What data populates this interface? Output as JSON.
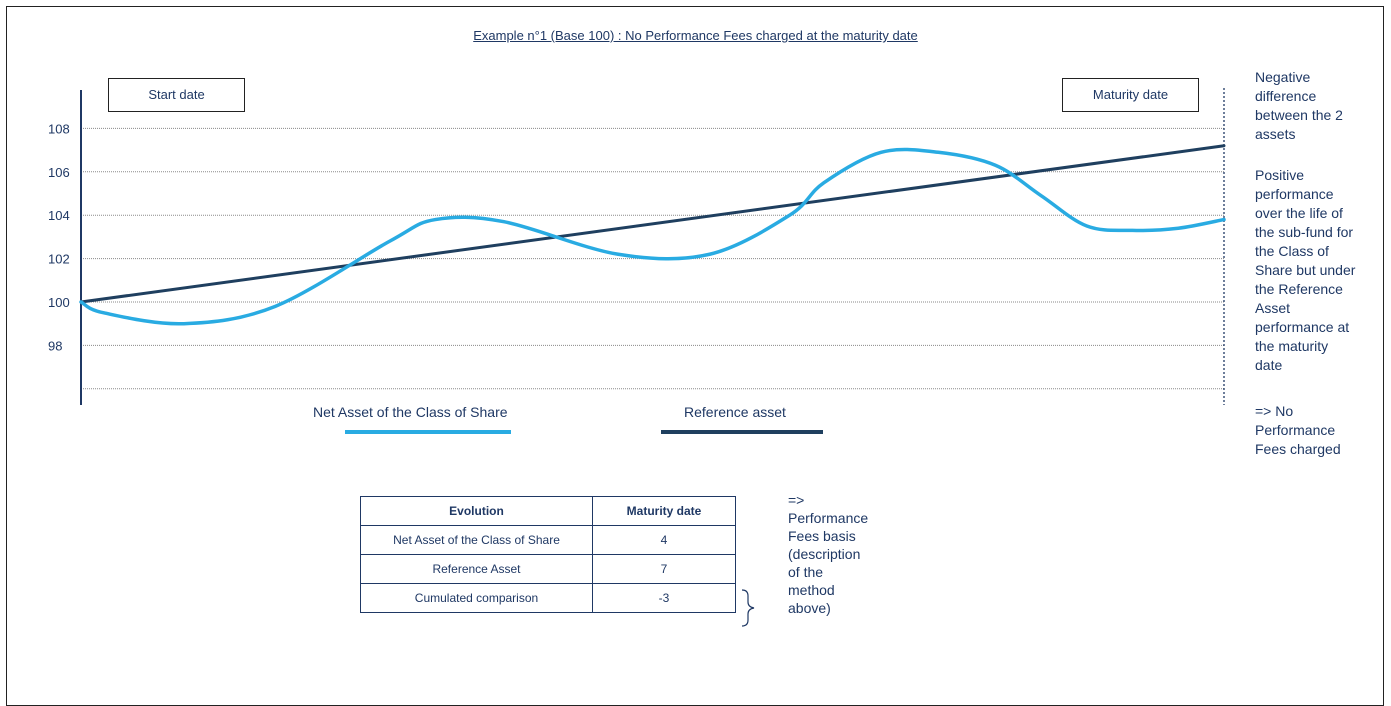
{
  "colors": {
    "net_asset": "#29abe2",
    "reference": "#1f3f5f",
    "text": "#1f3864"
  },
  "chart_data": {
    "type": "line",
    "title": "Example n°1 (Base 100) : No Performance Fees charged at the maturity date",
    "ylim": [
      96,
      109.5
    ],
    "xlim": [
      0,
      100
    ],
    "yticks": [
      108,
      106,
      104,
      102,
      100,
      98
    ],
    "grid": true,
    "legend_placement": "bottom",
    "series": [
      {
        "name": "Net Asset of the Class of Share",
        "color": "#29abe2",
        "x": [
          0,
          2,
          9,
          17,
          27,
          31,
          37,
          47,
          55,
          62,
          65,
          70,
          75,
          80,
          84,
          88,
          92,
          96,
          100
        ],
        "y": [
          100,
          99.5,
          99.0,
          99.8,
          102.8,
          103.8,
          103.7,
          102.2,
          102.2,
          104.0,
          105.5,
          106.9,
          106.9,
          106.3,
          104.9,
          103.5,
          103.3,
          103.4,
          103.8
        ]
      },
      {
        "name": "Reference asset",
        "color": "#1f3f5f",
        "x": [
          0,
          100
        ],
        "y": [
          100,
          107.2
        ]
      }
    ]
  },
  "labels": {
    "start_date": "Start date",
    "maturity_date": "Maturity date"
  },
  "side_note": {
    "negative_difference": [
      "Negative",
      "difference",
      "between the 2",
      "assets"
    ],
    "positive_performance": [
      "Positive",
      "performance",
      "over the life of",
      "the sub-fund for",
      "the Class of",
      "Share but under",
      "the Reference",
      "Asset",
      "performance at",
      "the maturity",
      "date"
    ],
    "no_fees": [
      "=> No",
      "Performance",
      "Fees charged"
    ]
  },
  "table": {
    "headers": [
      "Evolution",
      "Maturity date"
    ],
    "rows": [
      [
        "Net Asset of the Class of Share",
        "4"
      ],
      [
        "Reference Asset",
        "7"
      ],
      [
        "Cumulated comparison",
        "-3"
      ]
    ]
  },
  "table_note": [
    "=>",
    "Performance",
    "Fees basis",
    "(description",
    "of the",
    "method",
    "above)"
  ]
}
